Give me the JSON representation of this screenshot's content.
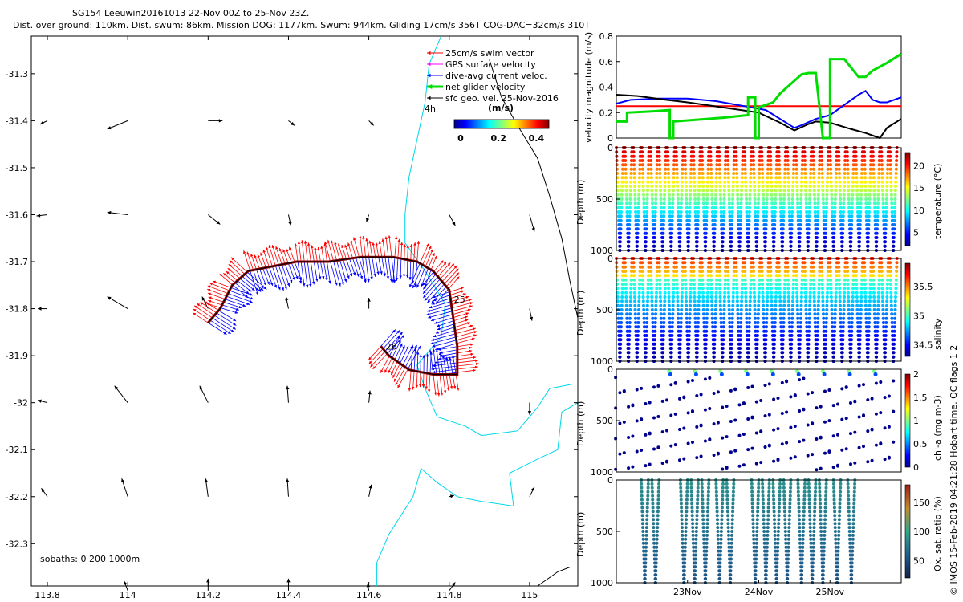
{
  "header": {
    "title_line1": "SG154 Leeuwin20161013 22-Nov 00Z to 25-Nov 23Z.",
    "title_line2": "Dist. over ground: 110km. Dist. swum: 86km. Mission DOG: 1177km. Swum: 944km. Gliding 17cm/s 356T COG-DAC=32cm/s 310T"
  },
  "credit": "© IMOS 15-Feb-2019 04:21:28 Hobart time. QC flags 1  2",
  "colors": {
    "swim": "#ff0000",
    "gps": "#ff00ff",
    "dac": "#0000ff",
    "net": "#00dd00",
    "sfc": "#000000",
    "coast": "#00d8e8",
    "isobath": "#000000",
    "red_line": "#ff0000"
  },
  "chart_data": [
    {
      "id": "map",
      "type": "scatter",
      "title": "SG154 Leeuwin20161013 glider track and velocity map",
      "xlim": [
        113.76,
        115.12
      ],
      "ylim": [
        -32.39,
        -31.22
      ],
      "x_ticks": [
        113.8,
        114,
        114.2,
        114.4,
        114.6,
        114.8,
        115
      ],
      "x_tick_labels": [
        "113.8",
        "114",
        "114.2",
        "114.4",
        "114.6",
        "114.8",
        "115"
      ],
      "y_ticks": [
        -31.3,
        -31.4,
        -31.5,
        -31.6,
        -31.7,
        -31.8,
        -31.9,
        -32,
        -32.1,
        -32.2,
        -32.3
      ],
      "y_tick_labels": [
        "-31.3",
        "-31.4",
        "-31.5",
        "-31.6",
        "-31.7",
        "-31.8",
        "-31.9",
        "-32",
        "-32.1",
        "-32.2",
        "-32.3"
      ],
      "legend": [
        {
          "label": "25cm/s swim vector",
          "color": "#ff0000"
        },
        {
          "label": "GPS surface velocity",
          "color": "#ff00ff"
        },
        {
          "label": "dive-avg current veloc.",
          "color": "#0000ff"
        },
        {
          "label": "net glider velocity",
          "color": "#00dd00"
        },
        {
          "label": "sfc geo. vel. 25-Nov-2016",
          "color": "#000000"
        }
      ],
      "legend_note": "4h",
      "colorbar": {
        "label": "(m/s)",
        "ticks": [
          0,
          0.2,
          0.4
        ],
        "tick_labels": [
          "0",
          "0.2",
          "0.4"
        ],
        "range": [
          0,
          0.5
        ]
      },
      "isobath_label": "isobaths: 0   200  1000m",
      "track": [
        [
          114.2,
          -31.83
        ],
        [
          114.23,
          -31.8
        ],
        [
          114.26,
          -31.75
        ],
        [
          114.3,
          -31.72
        ],
        [
          114.36,
          -31.71
        ],
        [
          114.42,
          -31.7
        ],
        [
          114.5,
          -31.7
        ],
        [
          114.58,
          -31.69
        ],
        [
          114.66,
          -31.69
        ],
        [
          114.72,
          -31.7
        ],
        [
          114.76,
          -31.72
        ],
        [
          114.8,
          -31.76
        ],
        [
          114.81,
          -31.82
        ],
        [
          114.82,
          -31.88
        ],
        [
          114.82,
          -31.94
        ],
        [
          114.76,
          -31.94
        ],
        [
          114.7,
          -31.93
        ],
        [
          114.65,
          -31.9
        ],
        [
          114.63,
          -31.88
        ]
      ],
      "track_labels": [
        {
          "text": "25",
          "x": 114.8,
          "y": -31.78
        },
        {
          "text": "26",
          "x": 114.63,
          "y": -31.88
        }
      ],
      "sfc_arrows": [
        {
          "x": 113.8,
          "y": -31.4,
          "u": -0.06,
          "v": -0.03
        },
        {
          "x": 114.0,
          "y": -31.4,
          "u": -0.17,
          "v": -0.07
        },
        {
          "x": 114.2,
          "y": -31.4,
          "u": 0.12,
          "v": 0.0
        },
        {
          "x": 114.4,
          "y": -31.4,
          "u": 0.05,
          "v": -0.04
        },
        {
          "x": 114.6,
          "y": -31.4,
          "u": 0.04,
          "v": -0.04
        },
        {
          "x": 113.8,
          "y": -31.6,
          "u": -0.09,
          "v": -0.01
        },
        {
          "x": 114.0,
          "y": -31.6,
          "u": -0.17,
          "v": 0.02
        },
        {
          "x": 114.2,
          "y": -31.6,
          "u": 0.1,
          "v": -0.08
        },
        {
          "x": 114.4,
          "y": -31.6,
          "u": 0.02,
          "v": -0.09
        },
        {
          "x": 114.6,
          "y": -31.6,
          "u": -0.02,
          "v": -0.06
        },
        {
          "x": 114.8,
          "y": -31.6,
          "u": 0.05,
          "v": -0.09
        },
        {
          "x": 115.0,
          "y": -31.6,
          "u": 0.04,
          "v": -0.14
        },
        {
          "x": 113.8,
          "y": -31.8,
          "u": -0.08,
          "v": 0.0
        },
        {
          "x": 114.0,
          "y": -31.8,
          "u": -0.17,
          "v": 0.1
        },
        {
          "x": 114.2,
          "y": -31.8,
          "u": -0.05,
          "v": 0.1
        },
        {
          "x": 114.4,
          "y": -31.8,
          "u": -0.02,
          "v": 0.1
        },
        {
          "x": 114.6,
          "y": -31.8,
          "u": 0.0,
          "v": 0.09
        },
        {
          "x": 115.0,
          "y": -31.8,
          "u": 0.02,
          "v": -0.1
        },
        {
          "x": 113.8,
          "y": -32.0,
          "u": -0.08,
          "v": 0.02
        },
        {
          "x": 114.0,
          "y": -32.0,
          "u": -0.11,
          "v": 0.14
        },
        {
          "x": 114.2,
          "y": -32.0,
          "u": -0.07,
          "v": 0.14
        },
        {
          "x": 114.4,
          "y": -32.0,
          "u": -0.01,
          "v": 0.14
        },
        {
          "x": 114.6,
          "y": -32.0,
          "u": 0.01,
          "v": 0.1
        },
        {
          "x": 115.0,
          "y": -32.0,
          "u": 0.0,
          "v": -0.1
        },
        {
          "x": 113.8,
          "y": -32.2,
          "u": -0.05,
          "v": 0.07
        },
        {
          "x": 114.0,
          "y": -32.2,
          "u": -0.05,
          "v": 0.15
        },
        {
          "x": 114.2,
          "y": -32.2,
          "u": -0.02,
          "v": 0.15
        },
        {
          "x": 114.4,
          "y": -32.2,
          "u": -0.01,
          "v": 0.15
        },
        {
          "x": 114.6,
          "y": -32.2,
          "u": 0.02,
          "v": 0.1
        },
        {
          "x": 114.8,
          "y": -32.2,
          "u": 0.04,
          "v": 0.01
        },
        {
          "x": 115.0,
          "y": -32.2,
          "u": 0.04,
          "v": 0.08
        },
        {
          "x": 114.0,
          "y": -32.4,
          "u": -0.03,
          "v": 0.08
        },
        {
          "x": 114.2,
          "y": -32.4,
          "u": 0.0,
          "v": 0.1
        },
        {
          "x": 114.4,
          "y": -32.4,
          "u": 0.0,
          "v": 0.1
        },
        {
          "x": 114.6,
          "y": -32.4,
          "u": -0.01,
          "v": 0.06
        },
        {
          "x": 114.8,
          "y": -32.4,
          "u": 0.05,
          "v": 0.07
        }
      ],
      "coast_0m": [
        [
          114.78,
          -31.22
        ],
        [
          114.75,
          -31.28
        ],
        [
          114.74,
          -31.36
        ],
        [
          114.72,
          -31.44
        ],
        [
          114.7,
          -31.52
        ],
        [
          114.69,
          -31.6
        ],
        [
          114.69,
          -31.66
        ],
        [
          114.74,
          -31.72
        ],
        [
          114.79,
          -31.79
        ],
        [
          114.78,
          -31.86
        ],
        [
          114.72,
          -31.92
        ],
        [
          114.74,
          -31.97
        ],
        [
          114.77,
          -32.03
        ],
        [
          114.84,
          -32.05
        ],
        [
          114.88,
          -32.07
        ],
        [
          114.97,
          -32.06
        ],
        [
          115.02,
          -32.01
        ],
        [
          115.05,
          -31.97
        ],
        [
          115.11,
          -31.96
        ]
      ],
      "coast_0m_south": [
        [
          114.62,
          -32.39
        ],
        [
          114.62,
          -32.34
        ],
        [
          114.65,
          -32.28
        ],
        [
          114.71,
          -32.2
        ],
        [
          114.73,
          -32.14
        ],
        [
          114.77,
          -32.17
        ],
        [
          114.82,
          -32.2
        ],
        [
          114.88,
          -32.21
        ],
        [
          114.96,
          -32.22
        ],
        [
          114.95,
          -32.15
        ],
        [
          115.02,
          -32.12
        ],
        [
          115.07,
          -32.1
        ],
        [
          115.08,
          -32.02
        ],
        [
          115.12,
          -32.0
        ]
      ],
      "isobath_1000m": [
        [
          114.9,
          -31.27
        ],
        [
          114.93,
          -31.35
        ],
        [
          114.97,
          -31.41
        ],
        [
          115.02,
          -31.48
        ],
        [
          115.05,
          -31.56
        ],
        [
          115.08,
          -31.65
        ],
        [
          115.1,
          -31.74
        ],
        [
          115.12,
          -31.82
        ]
      ],
      "isobath_south": [
        [
          115.02,
          -32.39
        ],
        [
          115.07,
          -32.36
        ],
        [
          115.1,
          -32.35
        ]
      ]
    },
    {
      "id": "velocity",
      "type": "line",
      "ylabel": "velocity magnitude (m/s)",
      "xlim": [
        22.0,
        26.0
      ],
      "ylim": [
        0,
        0.8
      ],
      "y_ticks": [
        0,
        0.2,
        0.4,
        0.6,
        0.8
      ],
      "y_tick_labels": [
        "0",
        "0.2",
        "0.4",
        "0.6",
        "0.8"
      ],
      "series": [
        {
          "name": "swim vector",
          "color": "#ff0000",
          "x": [
            22.0,
            26.0
          ],
          "values": [
            0.25,
            0.25
          ]
        },
        {
          "name": "dive-avg current",
          "color": "#0000ff",
          "x": [
            22.0,
            22.2,
            22.6,
            23.0,
            23.4,
            23.8,
            24.1,
            24.5,
            24.6,
            24.8,
            25.0,
            25.4,
            25.5,
            25.6,
            25.7,
            25.8,
            26.0
          ],
          "values": [
            0.27,
            0.3,
            0.31,
            0.31,
            0.29,
            0.25,
            0.22,
            0.08,
            0.1,
            0.15,
            0.18,
            0.34,
            0.37,
            0.3,
            0.28,
            0.28,
            0.32
          ]
        },
        {
          "name": "sfc geo vel",
          "color": "#000000",
          "x": [
            22.0,
            22.3,
            22.7,
            23.0,
            23.5,
            24.0,
            24.3,
            24.5,
            24.7,
            24.8,
            25.0,
            25.3,
            25.5,
            25.7,
            25.8,
            26.0
          ],
          "values": [
            0.34,
            0.33,
            0.3,
            0.28,
            0.24,
            0.2,
            0.12,
            0.06,
            0.11,
            0.13,
            0.12,
            0.07,
            0.04,
            0.0,
            0.08,
            0.15
          ]
        },
        {
          "name": "net glider velocity",
          "color": "#00dd00",
          "x": [
            22.0,
            22.15,
            22.15,
            22.5,
            22.75,
            22.75,
            22.8,
            22.8,
            23.5,
            23.85,
            23.85,
            23.95,
            23.95,
            24.0,
            24.0,
            24.1,
            24.2,
            24.3,
            24.4,
            24.5,
            24.6,
            24.6,
            24.7,
            24.8,
            24.9,
            25.0,
            25.0,
            25.2,
            25.4,
            25.5,
            25.6,
            25.8,
            26.0
          ],
          "values": [
            0.13,
            0.13,
            0.2,
            0.21,
            0.22,
            0.0,
            0.0,
            0.13,
            0.16,
            0.18,
            0.32,
            0.32,
            0.0,
            0.0,
            0.24,
            0.26,
            0.28,
            0.35,
            0.4,
            0.45,
            0.5,
            0.5,
            0.51,
            0.51,
            0.0,
            0.0,
            0.62,
            0.62,
            0.48,
            0.48,
            0.53,
            0.59,
            0.66
          ]
        }
      ]
    },
    {
      "id": "temperature",
      "type": "scatter",
      "ylabel": "Depth (m)",
      "colorbar_label": "temperature (°C)",
      "colorbar_range": [
        2,
        23
      ],
      "colorbar_ticks": [
        5,
        10,
        15,
        20
      ],
      "colorbar_tick_labels": [
        "5",
        "10",
        "15",
        "20"
      ],
      "y_ticks": [
        0,
        500,
        1000
      ],
      "y_tick_labels": [
        "0",
        "500",
        "1000"
      ],
      "ylim": [
        0,
        1000
      ],
      "xlim": [
        22.0,
        26.0
      ],
      "profile_count": 33,
      "dive_duration_days": 0.12,
      "max_depth_m": 1000
    },
    {
      "id": "salinity",
      "type": "scatter",
      "ylabel": "Depth (m)",
      "colorbar_label": "salinity",
      "colorbar_range": [
        34.3,
        35.9
      ],
      "colorbar_ticks": [
        34.5,
        35,
        35.5
      ],
      "colorbar_tick_labels": [
        "34.5",
        "35",
        "35.5"
      ],
      "y_ticks": [
        0,
        500,
        1000
      ],
      "y_tick_labels": [
        "0",
        "500",
        "1000"
      ],
      "ylim": [
        0,
        1000
      ],
      "xlim": [
        22.0,
        26.0
      ],
      "profile_count": 33,
      "max_depth_m": 1000
    },
    {
      "id": "chla",
      "type": "scatter",
      "ylabel": "Depth (m)",
      "colorbar_label": "chl-a (mg m-3)",
      "colorbar_range": [
        0,
        2
      ],
      "colorbar_ticks": [
        0,
        0.5,
        1,
        1.5,
        2
      ],
      "colorbar_tick_labels": [
        "0",
        "0.5",
        "1",
        "1.5",
        "2"
      ],
      "y_ticks": [
        0,
        500,
        1000
      ],
      "y_tick_labels": [
        "0",
        "500",
        "1000"
      ],
      "ylim": [
        0,
        1000
      ],
      "xlim": [
        22.0,
        26.0
      ],
      "profile_count": 33,
      "max_depth_m": 1000
    },
    {
      "id": "oxygen",
      "type": "scatter",
      "ylabel": "Depth (m)",
      "colorbar_label": "Ox. sat. ratio (%)",
      "colorbar_range": [
        20,
        180
      ],
      "colorbar_ticks": [
        50,
        100,
        150
      ],
      "colorbar_tick_labels": [
        "50",
        "100",
        "150"
      ],
      "y_ticks": [
        0,
        500,
        1000
      ],
      "y_tick_labels": [
        "0",
        "500",
        "1000"
      ],
      "ylim": [
        0,
        1000
      ],
      "xlim": [
        22.0,
        26.0
      ],
      "x_ticks": [
        23,
        24,
        25
      ],
      "x_tick_labels": [
        "23Nov",
        "24Nov",
        "25Nov"
      ],
      "profile_x": [
        22.4,
        22.55,
        22.95,
        23.1,
        23.25,
        23.45,
        23.6,
        23.95,
        24.1,
        24.25,
        24.4,
        24.6,
        24.75,
        24.9,
        25.1,
        25.3
      ],
      "max_depth_m": 1000
    }
  ]
}
